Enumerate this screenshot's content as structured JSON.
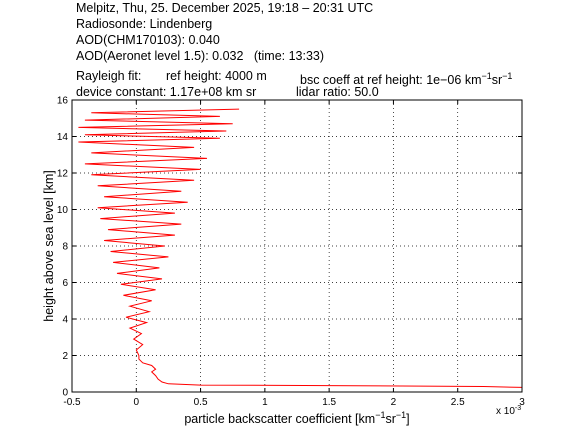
{
  "header": {
    "line1": "Melpitz, Thu, 25. December 2025, 19:18 – 20:31 UTC",
    "line2": "Radiosonde: Lindenberg",
    "line3": "AOD(CHM170103): 0.040",
    "line4": "AOD(Aeronet level 1.5): 0.032   (time: 13:33)",
    "rayleigh_label": "Rayleigh fit:",
    "ref_height": "ref height: 4000 m",
    "bsc_coeff_prefix": "bsc coeff at ref height: 1e−06 km",
    "device_constant": "device constant: 1.17e+08 km sr",
    "lidar_ratio": "lidar ratio: 50.0"
  },
  "chart_data": {
    "type": "line",
    "title": "",
    "xlabel_main": "particle backscatter coefficient [km",
    "ylabel": "height above sea level [km]",
    "x_multiplier": "x 10",
    "x_multiplier_exp": "-3",
    "xlim": [
      -0.5,
      3
    ],
    "ylim": [
      0,
      16
    ],
    "xticks": [
      "-0.5",
      "0",
      "0.5",
      "1",
      "1.5",
      "2",
      "2.5",
      "3"
    ],
    "xtick_values": [
      -0.5,
      0,
      0.5,
      1,
      1.5,
      2,
      2.5,
      3
    ],
    "yticks": [
      "0",
      "2",
      "4",
      "6",
      "8",
      "10",
      "12",
      "14",
      "16"
    ],
    "ytick_values": [
      0,
      2,
      4,
      6,
      8,
      10,
      12,
      14,
      16
    ],
    "grid": true,
    "line_color": "#ff0000",
    "series": [
      {
        "values": [
          [
            3.0,
            0.25
          ],
          [
            2.7,
            0.3
          ],
          [
            1.5,
            0.35
          ],
          [
            0.5,
            0.38
          ],
          [
            0.25,
            0.45
          ],
          [
            0.2,
            0.55
          ],
          [
            0.17,
            0.7
          ],
          [
            0.15,
            0.9
          ],
          [
            0.12,
            1.1
          ],
          [
            0.15,
            1.25
          ],
          [
            0.12,
            1.45
          ],
          [
            0.05,
            1.6
          ],
          [
            0.02,
            1.8
          ],
          [
            0.02,
            2.0
          ],
          [
            0.0,
            2.3
          ],
          [
            0.05,
            2.6
          ],
          [
            -0.02,
            2.9
          ],
          [
            0.04,
            3.2
          ],
          [
            -0.05,
            3.5
          ],
          [
            0.08,
            3.8
          ],
          [
            -0.08,
            4.1
          ],
          [
            0.1,
            4.4
          ],
          [
            -0.05,
            4.7
          ],
          [
            0.12,
            5.0
          ],
          [
            -0.1,
            5.3
          ],
          [
            0.15,
            5.6
          ],
          [
            -0.12,
            5.9
          ],
          [
            0.2,
            6.2
          ],
          [
            -0.15,
            6.5
          ],
          [
            0.18,
            6.8
          ],
          [
            -0.18,
            7.1
          ],
          [
            0.25,
            7.4
          ],
          [
            -0.2,
            7.7
          ],
          [
            0.22,
            8.0
          ],
          [
            -0.25,
            8.3
          ],
          [
            0.3,
            8.6
          ],
          [
            -0.22,
            8.9
          ],
          [
            0.35,
            9.2
          ],
          [
            -0.28,
            9.5
          ],
          [
            0.3,
            9.8
          ],
          [
            -0.3,
            10.1
          ],
          [
            0.4,
            10.4
          ],
          [
            -0.25,
            10.7
          ],
          [
            0.35,
            11.0
          ],
          [
            -0.3,
            11.3
          ],
          [
            0.45,
            11.6
          ],
          [
            -0.35,
            11.9
          ],
          [
            0.5,
            12.2
          ],
          [
            -0.4,
            12.5
          ],
          [
            0.55,
            12.8
          ],
          [
            -0.35,
            13.1
          ],
          [
            0.45,
            13.4
          ],
          [
            -0.45,
            13.7
          ],
          [
            0.65,
            13.9
          ],
          [
            -0.4,
            14.1
          ],
          [
            0.7,
            14.3
          ],
          [
            -0.45,
            14.5
          ],
          [
            0.75,
            14.7
          ],
          [
            -0.4,
            14.9
          ],
          [
            0.65,
            15.1
          ],
          [
            -0.35,
            15.3
          ],
          [
            0.8,
            15.5
          ]
        ]
      }
    ]
  }
}
